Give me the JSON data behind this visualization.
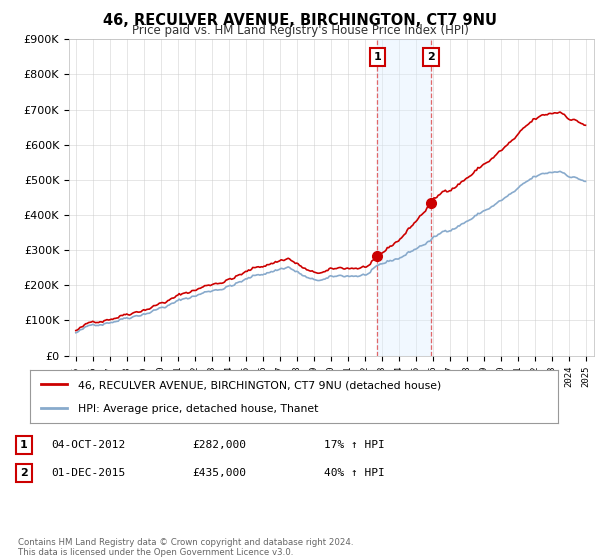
{
  "title": "46, RECULVER AVENUE, BIRCHINGTON, CT7 9NU",
  "subtitle": "Price paid vs. HM Land Registry's House Price Index (HPI)",
  "ylim": [
    0,
    900000
  ],
  "yticks": [
    0,
    100000,
    200000,
    300000,
    400000,
    500000,
    600000,
    700000,
    800000,
    900000
  ],
  "sale1_date_num": 2012.75,
  "sale1_price": 282000,
  "sale1_label": "1",
  "sale2_date_num": 2015.917,
  "sale2_price": 435000,
  "sale2_label": "2",
  "red_line_color": "#cc0000",
  "blue_line_color": "#88aacc",
  "shade_color": "#ddeeff",
  "vline_color": "#dd4444",
  "legend_label_red": "46, RECULVER AVENUE, BIRCHINGTON, CT7 9NU (detached house)",
  "legend_label_blue": "HPI: Average price, detached house, Thanet",
  "table_row1": [
    "1",
    "04-OCT-2012",
    "£282,000",
    "17% ↑ HPI"
  ],
  "table_row2": [
    "2",
    "01-DEC-2015",
    "£435,000",
    "40% ↑ HPI"
  ],
  "footer": "Contains HM Land Registry data © Crown copyright and database right 2024.\nThis data is licensed under the Open Government Licence v3.0.",
  "background_color": "#ffffff",
  "grid_color": "#cccccc"
}
